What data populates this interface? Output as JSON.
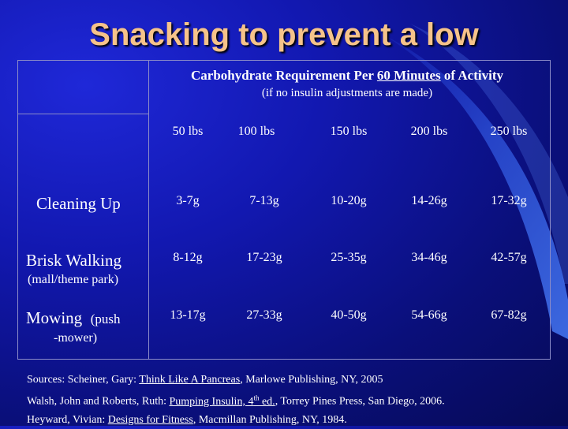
{
  "title": "Snacking to prevent a low",
  "table": {
    "header_prefix": "Carbohydrate Requirement Per ",
    "header_underlined": "60 Minutes",
    "header_suffix": " of Activity",
    "subheader": "(if no insulin adjustments are made)",
    "columns": [
      "50 lbs",
      "100 lbs",
      "150 lbs",
      "200 lbs",
      "250 lbs"
    ],
    "rows": [
      {
        "label": "Cleaning Up",
        "sublabel": "",
        "values": [
          "3-7g",
          "7-13g",
          "10-20g",
          "14-26g",
          "17-32g"
        ]
      },
      {
        "label": "Brisk Walking",
        "sublabel": "(mall/theme park)",
        "values": [
          "8-12g",
          "17-23g",
          "25-35g",
          "34-46g",
          "42-57g"
        ]
      },
      {
        "label": "Mowing",
        "label_extra": "(push",
        "sublabel": "-mower)",
        "values": [
          "13-17g",
          "27-33g",
          "40-50g",
          "54-66g",
          "67-82g"
        ]
      }
    ]
  },
  "sources": {
    "line1": {
      "prefix": "Sources:  Scheiner, Gary: ",
      "book": "Think Like A Pancreas",
      "suffix": ", Marlowe Publishing, NY, 2005"
    },
    "line2": {
      "prefix": "Walsh, John and Roberts, Ruth:  ",
      "book_a": "Pumping Insulin, 4",
      "book_sup": "th",
      "book_b": " ed.",
      "suffix": ", Torrey Pines Press, San Diego, 2006."
    },
    "line3": {
      "prefix": "Heyward, Vivian: ",
      "book": "Designs for Fitness",
      "suffix": ", Macmillan Publishing, NY, 1984."
    }
  }
}
